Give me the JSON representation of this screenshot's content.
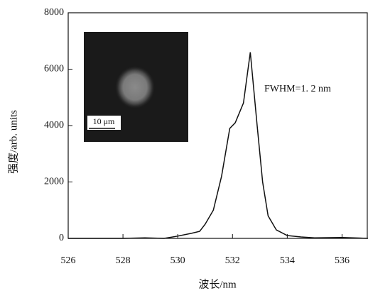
{
  "chart_data": {
    "type": "line",
    "x_label": "波长/nm",
    "y_label": "强度/arb. units",
    "annotation": "FWHM=1. 2 nm",
    "inset_scale_label": "10 μm",
    "x": [
      526,
      527,
      528,
      528.8,
      529.5,
      530,
      530.5,
      530.8,
      531,
      531.3,
      531.6,
      531.9,
      532.1,
      532.4,
      532.65,
      532.9,
      533.1,
      533.3,
      533.6,
      534,
      534.5,
      535,
      536,
      537
    ],
    "series": [
      {
        "name": null,
        "color": "#111111",
        "values": [
          0,
          0,
          0,
          20,
          0,
          80,
          180,
          250,
          500,
          1000,
          2200,
          3900,
          4100,
          4800,
          6600,
          4000,
          2000,
          800,
          300,
          100,
          50,
          20,
          30,
          0
        ]
      }
    ],
    "xlim": [
      526,
      537
    ],
    "xticks": [
      526,
      528,
      530,
      532,
      534,
      536
    ],
    "ylim": [
      0,
      8000
    ],
    "yticks": [
      0,
      2000,
      4000,
      6000,
      8000
    ]
  }
}
